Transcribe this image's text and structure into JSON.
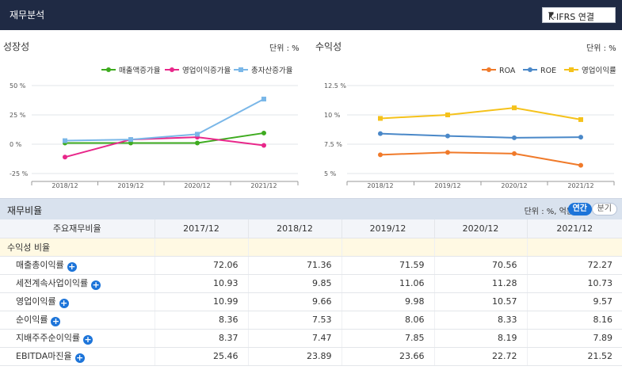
{
  "header": {
    "title": "재무분석",
    "select_value": "K-IFRS 연결",
    "caret": "▼"
  },
  "growth": {
    "title": "성장성",
    "unit": "단위 : %",
    "chart_data": {
      "type": "line",
      "x": [
        "2018/12",
        "2019/12",
        "2020/12",
        "2021/12"
      ],
      "y_ticks": [
        "50 %",
        "25 %",
        "0 %",
        "-25 %"
      ],
      "ylim": [
        -25,
        50
      ],
      "series": [
        {
          "name": "매출액증가율",
          "color": "#3eab1f",
          "values": [
            1,
            1,
            1,
            9.5
          ]
        },
        {
          "name": "영업이익증가율",
          "color": "#e8278a",
          "values": [
            -11,
            4,
            6,
            -1
          ]
        },
        {
          "name": "총자산증가율",
          "color": "#7ab7e8",
          "values": [
            3,
            4,
            8.5,
            38.5
          ]
        }
      ]
    }
  },
  "profit": {
    "title": "수익성",
    "unit": "단위 : %",
    "chart_data": {
      "type": "line",
      "x": [
        "2018/12",
        "2019/12",
        "2020/12",
        "2021/12"
      ],
      "y_ticks": [
        "12.5 %",
        "10 %",
        "7.5 %",
        "5 %"
      ],
      "ylim": [
        5,
        12.5
      ],
      "series": [
        {
          "name": "ROA",
          "color": "#f07a2a",
          "values": [
            6.6,
            6.8,
            6.7,
            5.7
          ]
        },
        {
          "name": "ROE",
          "color": "#4a88c8",
          "values": [
            8.4,
            8.2,
            8.05,
            8.1
          ]
        },
        {
          "name": "영업이익률",
          "color": "#f5c21b",
          "values": [
            9.7,
            10,
            10.6,
            9.6
          ]
        }
      ]
    }
  },
  "ratios": {
    "title": "재무비율",
    "unit": "단위 : %, 억원",
    "toggle_annual": "연간",
    "toggle_quarter": "분기",
    "columns": [
      "주요재무비율",
      "2017/12",
      "2018/12",
      "2019/12",
      "2020/12",
      "2021/12"
    ],
    "group_label": "수익성 비율",
    "rows": [
      {
        "label": "매출총이익률",
        "values": [
          "72.06",
          "71.36",
          "71.59",
          "70.56",
          "72.27"
        ]
      },
      {
        "label": "세전계속사업이익률",
        "values": [
          "10.93",
          "9.85",
          "11.06",
          "11.28",
          "10.73"
        ]
      },
      {
        "label": "영업이익률",
        "values": [
          "10.99",
          "9.66",
          "9.98",
          "10.57",
          "9.57"
        ]
      },
      {
        "label": "순이익률",
        "values": [
          "8.36",
          "7.53",
          "8.06",
          "8.33",
          "8.16"
        ]
      },
      {
        "label": "지배주주순이익률",
        "values": [
          "8.37",
          "7.47",
          "7.85",
          "8.19",
          "7.89"
        ]
      },
      {
        "label": "EBITDA마진율",
        "values": [
          "25.46",
          "23.89",
          "23.66",
          "22.72",
          "21.52"
        ]
      }
    ]
  }
}
